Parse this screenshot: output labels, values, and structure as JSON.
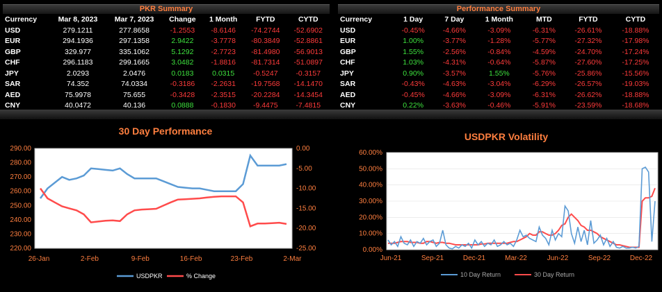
{
  "pkr_summary": {
    "title": "PKR Summary",
    "headers": [
      "Currency",
      "Mar 8, 2023",
      "Mar 7, 2023",
      "Change",
      "1 Month",
      "FYTD",
      "CYTD"
    ],
    "rows": [
      [
        "USD",
        "279.1211",
        "277.8658",
        "-1.2553",
        "-8.6146",
        "-74.2744",
        "-52.6902"
      ],
      [
        "EUR",
        "294.1936",
        "297.1358",
        "2.9422",
        "-3.7778",
        "-80.3849",
        "-52.8861"
      ],
      [
        "GBP",
        "329.977",
        "335.1062",
        "5.1292",
        "-2.7723",
        "-81.4980",
        "-56.9013"
      ],
      [
        "CHF",
        "296.1183",
        "299.1665",
        "3.0482",
        "-1.8816",
        "-81.7314",
        "-51.0897"
      ],
      [
        "JPY",
        "2.0293",
        "2.0476",
        "0.0183",
        "0.0315",
        "-0.5247",
        "-0.3157"
      ],
      [
        "SAR",
        "74.352",
        "74.0334",
        "-0.3186",
        "-2.2631",
        "-19.7568",
        "-14.1470"
      ],
      [
        "AED",
        "75.9978",
        "75.655",
        "-0.3428",
        "-2.3515",
        "-20.2284",
        "-14.3454"
      ],
      [
        "CNY",
        "40.0472",
        "40.136",
        "0.0888",
        "-0.1830",
        "-9.4475",
        "-7.4815"
      ]
    ]
  },
  "performance_summary": {
    "title": "Performance Summary",
    "headers": [
      "Currency",
      "1 Day",
      "7 Day",
      "1 Month",
      "MTD",
      "FYTD",
      "CYTD"
    ],
    "rows": [
      [
        "USD",
        "-0.45%",
        "-4.66%",
        "-3.09%",
        "-6.31%",
        "-26.61%",
        "-18.88%"
      ],
      [
        "EUR",
        "1.00%",
        "-3.77%",
        "-1.28%",
        "-5.77%",
        "-27.32%",
        "-17.98%"
      ],
      [
        "GBP",
        "1.55%",
        "-2.56%",
        "-0.84%",
        "-4.59%",
        "-24.70%",
        "-17.24%"
      ],
      [
        "CHF",
        "1.03%",
        "-4.31%",
        "-0.64%",
        "-5.87%",
        "-27.60%",
        "-17.25%"
      ],
      [
        "JPY",
        "0.90%",
        "-3.57%",
        "1.55%",
        "-5.76%",
        "-25.86%",
        "-15.56%"
      ],
      [
        "SAR",
        "-0.43%",
        "-4.63%",
        "-3.04%",
        "-6.29%",
        "-26.57%",
        "-19.03%"
      ],
      [
        "AED",
        "-0.45%",
        "-4.66%",
        "-3.09%",
        "-6.31%",
        "-26.62%",
        "-18.88%"
      ],
      [
        "CNY",
        "0.22%",
        "-3.63%",
        "-0.46%",
        "-5.91%",
        "-23.59%",
        "-18.68%"
      ]
    ]
  },
  "colors": {
    "negative": "#ff3b3b",
    "positive": "#3ee23e",
    "title_orange": "#ff7f3f",
    "blue": "#5b9bd5",
    "red": "#ff4b4b"
  },
  "chart_data": [
    {
      "type": "line",
      "title": "30 Day Performance",
      "x_ticks": [
        "26-Jan",
        "2-Feb",
        "9-Feb",
        "16-Feb",
        "23-Feb",
        "2-Mar"
      ],
      "y_left": {
        "lim": [
          220,
          290
        ],
        "ticks": [
          "220.00",
          "230.00",
          "240.00",
          "250.00",
          "260.00",
          "270.00",
          "280.00",
          "290.00"
        ]
      },
      "y_right": {
        "lim": [
          -25,
          0
        ],
        "ticks": [
          "-25.00",
          "-20.00",
          "-15.00",
          "-10.00",
          "-5.00",
          "0.00"
        ]
      },
      "series": [
        {
          "name": "USDPKR",
          "axis": "left",
          "values": [
            255,
            262,
            266,
            270,
            268,
            269,
            271,
            276,
            275.5,
            275,
            274.5,
            276,
            272,
            269,
            269,
            269,
            269,
            267,
            265,
            263,
            262.5,
            262,
            262,
            261,
            260,
            260,
            260,
            260,
            265,
            285,
            278,
            278,
            278,
            278,
            279
          ]
        },
        {
          "name": "% Change",
          "axis": "right",
          "values": [
            -10,
            -12.5,
            -13.5,
            -14.5,
            -15,
            -15.5,
            -16.5,
            -18.5,
            -18.3,
            -18.1,
            -18,
            -18.2,
            -16.5,
            -15.5,
            -15.3,
            -15.2,
            -15.1,
            -14.3,
            -13.5,
            -12.8,
            -12.7,
            -12.6,
            -12.5,
            -12.3,
            -12.1,
            -12,
            -12,
            -12,
            -13.5,
            -19.5,
            -18.8,
            -18.8,
            -18.7,
            -18.6,
            -18.9
          ]
        }
      ],
      "legend": "bottom"
    },
    {
      "type": "line",
      "title": "USDPKR Volatility",
      "x_ticks": [
        "Jun-21",
        "Sep-21",
        "Dec-21",
        "Mar-22",
        "Jun-22",
        "Sep-22",
        "Dec-22"
      ],
      "y_lim": [
        0,
        60
      ],
      "y_ticks": [
        "0.00%",
        "10.00%",
        "20.00%",
        "30.00%",
        "40.00%",
        "50.00%",
        "60.00%"
      ],
      "series": [
        {
          "name": "10 Day Return",
          "values": [
            6,
            3,
            5,
            2,
            8,
            4,
            3,
            6,
            2,
            5,
            4,
            7,
            3,
            5,
            6,
            2,
            4,
            12,
            3,
            1,
            0.5,
            2,
            1,
            3,
            2,
            4,
            1,
            6,
            3,
            5,
            2,
            4,
            3,
            6,
            2,
            3,
            5,
            3,
            4,
            2,
            6,
            12,
            8,
            9,
            7,
            6,
            5,
            14,
            9,
            7,
            3,
            12,
            6,
            10,
            8,
            27,
            24,
            10,
            4,
            14,
            5,
            12,
            3,
            18,
            4,
            6,
            9,
            3,
            7,
            2,
            5,
            1.5,
            1,
            2,
            1,
            1,
            1.5,
            1,
            2,
            50,
            51,
            48,
            5,
            30
          ]
        },
        {
          "name": "30 Day Return",
          "values": [
            4,
            4,
            4,
            4.5,
            5,
            5,
            5,
            4.5,
            4.5,
            4.5,
            4,
            4,
            5,
            5,
            4.5,
            4,
            4.5,
            4.5,
            4,
            4,
            3.5,
            3,
            3,
            3,
            3,
            3,
            3,
            3,
            3,
            3.5,
            3.5,
            4,
            4,
            4,
            4,
            4,
            4,
            4,
            4.5,
            5,
            5,
            6,
            7,
            8,
            10,
            9,
            9,
            11,
            11,
            10,
            9,
            9,
            10,
            12,
            15,
            16,
            20,
            22,
            20,
            18,
            15,
            14,
            12,
            12,
            11,
            10,
            8,
            7,
            6,
            5,
            4,
            3,
            3,
            2.5,
            2,
            1.5,
            1.5,
            1.5,
            1.5,
            30,
            32,
            32,
            33,
            38
          ]
        }
      ],
      "legend": "bottom"
    }
  ]
}
